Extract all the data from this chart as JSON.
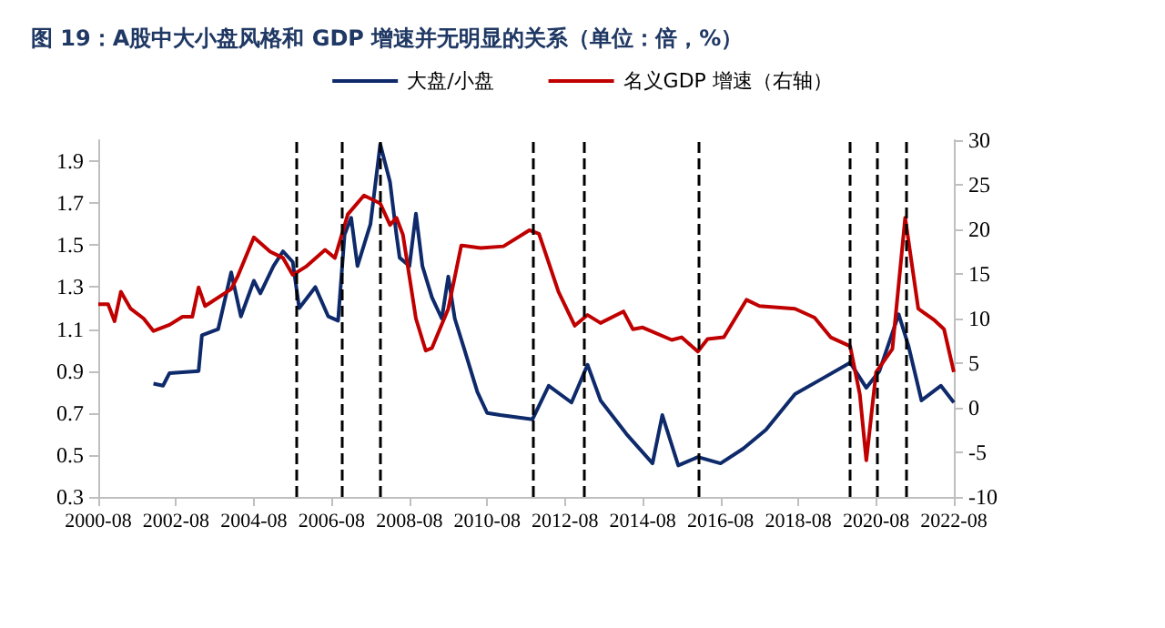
{
  "chart_data": {
    "type": "line",
    "title": "图 19：A股中大小盘风格和 GDP 增速并无明显的关系（单位：倍，%）",
    "xlim": [
      "2000-08",
      "2022-08"
    ],
    "xticks": [
      "2000-08",
      "2002-08",
      "2004-08",
      "2006-08",
      "2008-08",
      "2010-08",
      "2012-08",
      "2014-08",
      "2016-08",
      "2018-08",
      "2020-08",
      "2022-08"
    ],
    "ylim": [
      0.3,
      2.0
    ],
    "yticks": [
      0.3,
      0.5,
      0.7,
      0.9,
      1.1,
      1.3,
      1.5,
      1.7,
      1.9
    ],
    "y2lim": [
      -10,
      30
    ],
    "y2ticks": [
      -10,
      -5,
      0,
      5,
      10,
      15,
      20,
      25,
      30
    ],
    "grid": false,
    "legend": "top",
    "series": [
      {
        "name": "大盘/小盘",
        "color": "#0e2a6b",
        "x": [
          "2002-01",
          "2002-04",
          "2002-06",
          "2003-03",
          "2003-04",
          "2003-09",
          "2004-01",
          "2004-04",
          "2004-08",
          "2004-10",
          "2005-02",
          "2005-05",
          "2005-08",
          "2005-10",
          "2006-03",
          "2006-07",
          "2006-10",
          "2006-12",
          "2007-02",
          "2007-04",
          "2007-08",
          "2007-11",
          "2008-02",
          "2008-04",
          "2008-05",
          "2008-08",
          "2008-10",
          "2008-12",
          "2009-03",
          "2009-06",
          "2009-08",
          "2009-10",
          "2010-01",
          "2010-05",
          "2010-08",
          "2010-12",
          "2011-10",
          "2012-03",
          "2012-10",
          "2013-03",
          "2013-07",
          "2014-03",
          "2014-11",
          "2015-02",
          "2015-07",
          "2016-01",
          "2016-08",
          "2017-03",
          "2017-10",
          "2018-07",
          "2019-03",
          "2019-12",
          "2020-05",
          "2020-09",
          "2021-03",
          "2021-06",
          "2021-10",
          "2022-04",
          "2022-08"
        ],
        "values": [
          0.84,
          0.83,
          0.89,
          0.9,
          1.07,
          1.1,
          1.37,
          1.16,
          1.33,
          1.27,
          1.4,
          1.47,
          1.42,
          1.2,
          1.3,
          1.16,
          1.14,
          1.55,
          1.63,
          1.4,
          1.6,
          1.98,
          1.8,
          1.55,
          1.44,
          1.4,
          1.65,
          1.4,
          1.25,
          1.15,
          1.35,
          1.15,
          1.0,
          0.8,
          0.7,
          0.69,
          0.67,
          0.83,
          0.75,
          0.93,
          0.76,
          0.6,
          0.46,
          0.69,
          0.45,
          0.49,
          0.46,
          0.53,
          0.62,
          0.79,
          0.86,
          0.94,
          0.82,
          0.9,
          1.17,
          1.02,
          0.76,
          0.83,
          0.75
        ]
      },
      {
        "name": "名义GDP 增速（右轴）",
        "color": "#c00000",
        "axis": "y2",
        "x": [
          "2000-08",
          "2000-11",
          "2001-01",
          "2001-03",
          "2001-06",
          "2001-10",
          "2002-01",
          "2002-06",
          "2002-10",
          "2003-01",
          "2003-03",
          "2003-05",
          "2004-01",
          "2004-03",
          "2004-08",
          "2005-01",
          "2005-05",
          "2005-08",
          "2005-12",
          "2006-06",
          "2006-09",
          "2007-01",
          "2007-06",
          "2007-11",
          "2008-02",
          "2008-04",
          "2008-06",
          "2008-10",
          "2009-01",
          "2009-03",
          "2009-08",
          "2009-12",
          "2010-06",
          "2011-01",
          "2011-09",
          "2011-12",
          "2012-06",
          "2012-11",
          "2013-03",
          "2013-07",
          "2014-02",
          "2014-05",
          "2014-08",
          "2015-05",
          "2015-08",
          "2016-01",
          "2016-04",
          "2016-09",
          "2017-04",
          "2017-08",
          "2018-07",
          "2019-01",
          "2019-06",
          "2019-12",
          "2020-03",
          "2020-05",
          "2020-08",
          "2021-01",
          "2021-05",
          "2021-09",
          "2022-02",
          "2022-05",
          "2022-08"
        ],
        "values": [
          11.6,
          11.6,
          9.7,
          13.0,
          11.1,
          10.0,
          8.6,
          9.3,
          10.2,
          10.2,
          13.5,
          11.4,
          13.3,
          14.7,
          19.1,
          17.5,
          16.8,
          14.9,
          15.8,
          17.7,
          16.8,
          21.7,
          23.8,
          22.9,
          20.5,
          21.3,
          19.4,
          10.0,
          6.4,
          6.7,
          11.1,
          18.2,
          17.9,
          18.1,
          19.9,
          19.5,
          13.0,
          9.2,
          10.4,
          9.5,
          10.8,
          8.8,
          9.0,
          7.6,
          7.9,
          6.3,
          7.7,
          7.9,
          12.1,
          11.4,
          11.1,
          10.1,
          7.9,
          6.9,
          1.5,
          -5.9,
          4.0,
          6.6,
          21.3,
          11.1,
          9.8,
          8.8,
          4.0
        ]
      }
    ],
    "ref_lines": [
      {
        "axis": "x",
        "value": "2005-09",
        "color": "#000000",
        "line_style": "dashed"
      },
      {
        "axis": "x",
        "value": "2006-11",
        "color": "#000000",
        "line_style": "dashed"
      },
      {
        "axis": "x",
        "value": "2007-11",
        "color": "#000000",
        "line_style": "dashed"
      },
      {
        "axis": "x",
        "value": "2011-10",
        "color": "#000000",
        "line_style": "dashed"
      },
      {
        "axis": "x",
        "value": "2013-02",
        "color": "#000000",
        "line_style": "dashed"
      },
      {
        "axis": "x",
        "value": "2016-01",
        "color": "#000000",
        "line_style": "dashed"
      },
      {
        "axis": "x",
        "value": "2019-12",
        "color": "#000000",
        "line_style": "dashed"
      },
      {
        "axis": "x",
        "value": "2020-08",
        "color": "#000000",
        "line_style": "dashed"
      },
      {
        "axis": "x",
        "value": "2021-05",
        "color": "#000000",
        "line_style": "dashed"
      }
    ]
  }
}
